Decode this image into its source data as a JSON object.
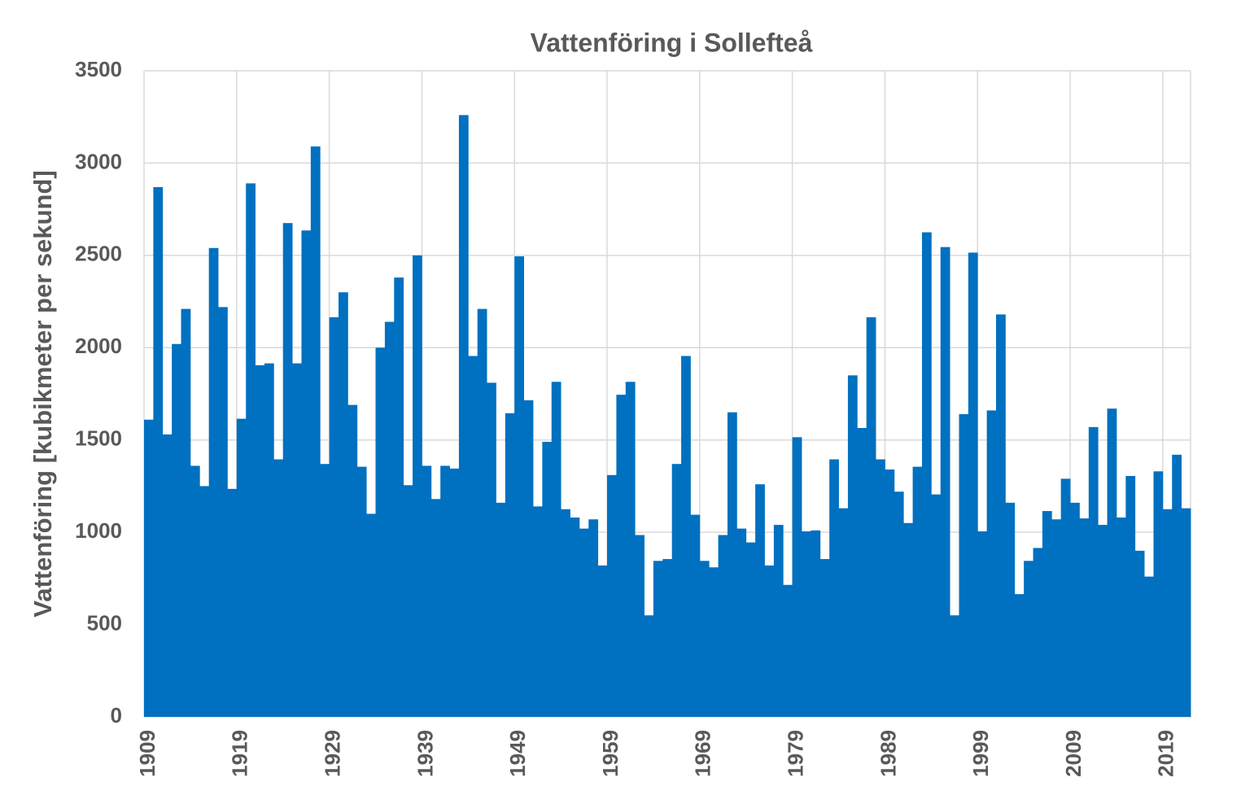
{
  "chart_data": {
    "type": "bar",
    "title": "Vattenföring i Sollefteå",
    "y_label": "Vattenföring [kubikmeter per sekund]",
    "categories": [
      "1909",
      null,
      null,
      null,
      null,
      null,
      null,
      null,
      null,
      null,
      "1919",
      null,
      null,
      null,
      null,
      null,
      null,
      null,
      null,
      null,
      "1929",
      null,
      null,
      null,
      null,
      null,
      null,
      null,
      null,
      null,
      "1939",
      null,
      null,
      null,
      null,
      null,
      null,
      null,
      null,
      null,
      "1949",
      null,
      null,
      null,
      null,
      null,
      null,
      null,
      null,
      null,
      "1959",
      null,
      null,
      null,
      null,
      null,
      null,
      null,
      null,
      null,
      "1969",
      null,
      null,
      null,
      null,
      null,
      null,
      null,
      null,
      null,
      "1979",
      null,
      null,
      null,
      null,
      null,
      null,
      null,
      null,
      null,
      "1989",
      null,
      null,
      null,
      null,
      null,
      null,
      null,
      null,
      null,
      "1999",
      null,
      null,
      null,
      null,
      null,
      null,
      null,
      null,
      null,
      "2009",
      null,
      null,
      null,
      null,
      null,
      null,
      null,
      null,
      null,
      "2019",
      null,
      null
    ],
    "values": [
      1610,
      2870,
      1530,
      2020,
      2210,
      1360,
      1250,
      2540,
      2220,
      1235,
      1615,
      2890,
      1905,
      1915,
      1395,
      2675,
      1915,
      2635,
      3090,
      1370,
      2165,
      2300,
      1690,
      1355,
      1100,
      2000,
      2140,
      2380,
      1255,
      2500,
      1360,
      1180,
      1360,
      1345,
      3260,
      1955,
      2210,
      1810,
      1160,
      1645,
      2495,
      1715,
      1140,
      1490,
      1815,
      1125,
      1080,
      1020,
      1070,
      820,
      1310,
      1745,
      1815,
      985,
      550,
      845,
      855,
      1370,
      1955,
      1095,
      845,
      810,
      985,
      1650,
      1020,
      945,
      1260,
      820,
      1040,
      715,
      1515,
      1005,
      1010,
      855,
      1395,
      1130,
      1850,
      1565,
      2165,
      1395,
      1340,
      1220,
      1050,
      1355,
      2625,
      1205,
      2545,
      550,
      1640,
      2515,
      1005,
      1660,
      2180,
      1160,
      665,
      845,
      915,
      1115,
      1070,
      1290,
      1160,
      1075,
      1570,
      1040,
      1670,
      1080,
      1305,
      900,
      760,
      1330,
      1125,
      1420,
      1130
    ],
    "color": "#0070c0",
    "ylim": [
      0,
      3500
    ],
    "yticks": [
      0,
      500,
      1000,
      1500,
      2000,
      2500,
      3000,
      3500
    ],
    "grid": true
  }
}
